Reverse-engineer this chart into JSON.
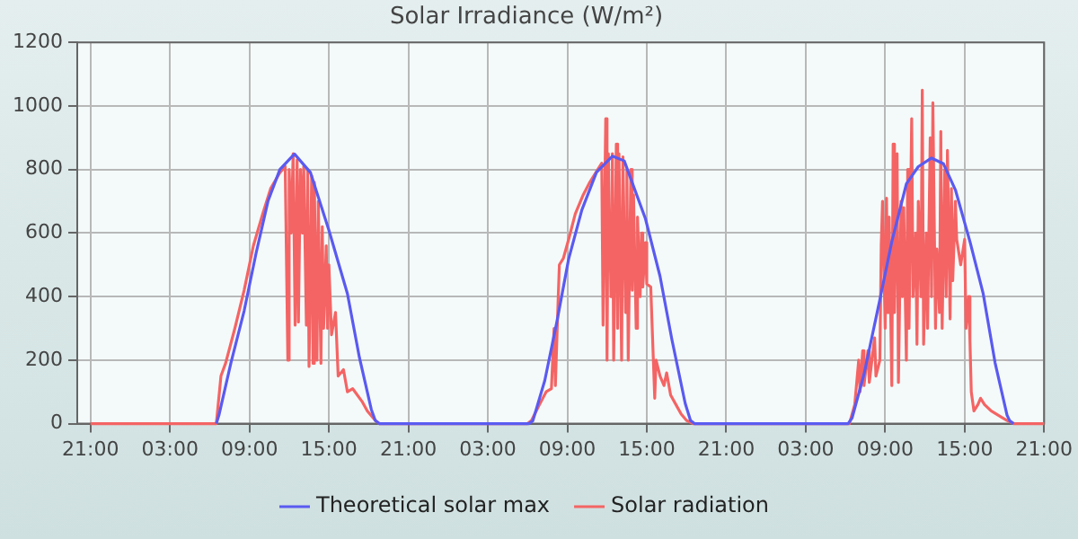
{
  "chart_data": {
    "type": "line",
    "title": "Solar Irradiance (W/m²)",
    "xlim": [
      "--01-01T20:00",
      "--01-04T21:00"
    ],
    "xticks": [
      {
        "value": "--01-01T21:00",
        "label": "21:00"
      },
      {
        "value": "--01-02T03:00",
        "label": "03:00"
      },
      {
        "value": "--01-02T09:00",
        "label": "09:00"
      },
      {
        "value": "--01-02T15:00",
        "label": "15:00"
      },
      {
        "value": "--01-02T21:00",
        "label": "21:00"
      },
      {
        "value": "--01-03T03:00",
        "label": "03:00"
      },
      {
        "value": "--01-03T09:00",
        "label": "09:00"
      },
      {
        "value": "--01-03T15:00",
        "label": "15:00"
      },
      {
        "value": "--01-03T21:00",
        "label": "21:00"
      },
      {
        "value": "--01-04T03:00",
        "label": "03:00"
      },
      {
        "value": "--01-04T09:00",
        "label": "09:00"
      },
      {
        "value": "--01-04T15:00",
        "label": "15:00"
      },
      {
        "value": "--01-04T21:00",
        "label": "21:00"
      }
    ],
    "ylim": [
      0,
      1200
    ],
    "yticks": [
      0,
      200,
      400,
      600,
      800,
      1000,
      1200
    ],
    "grid": true,
    "legend": "bottom",
    "marker": "none",
    "line_style": "solid",
    "series": [
      {
        "name": "Theoretical solar max",
        "color": "#5a5af0",
        "x": [
          "--01-02T06:30",
          "--01-02T06:42",
          "--01-02T07:36",
          "--01-02T08:36",
          "--01-02T09:30",
          "--01-02T10:24",
          "--01-02T11:18",
          "--01-02T12:24",
          "--01-02T13:36",
          "--01-02T15:00",
          "--01-02T16:24",
          "--01-02T17:18",
          "--01-02T18:12",
          "--01-02T18:30",
          "--01-02T18:48",
          "--01-03T06:06",
          "--01-03T06:24",
          "--01-03T07:18",
          "--01-03T08:12",
          "--01-03T09:06",
          "--01-03T10:06",
          "--01-03T11:12",
          "--01-03T12:24",
          "--01-03T13:18",
          "--01-03T14:54",
          "--01-03T16:00",
          "--01-03T16:54",
          "--01-03T17:54",
          "--01-03T18:18",
          "--01-03T18:36",
          "--01-04T06:12",
          "--01-04T06:30",
          "--01-04T07:24",
          "--01-04T08:36",
          "--01-04T09:30",
          "--01-04T10:36",
          "--01-04T11:30",
          "--01-04T12:30",
          "--01-04T13:24",
          "--01-04T14:18",
          "--01-04T15:24",
          "--01-04T16:24",
          "--01-04T17:18",
          "--01-04T18:12",
          "--01-04T18:24",
          "--01-04T18:42"
        ],
        "values": [
          0,
          27,
          191,
          355,
          536,
          700,
          800,
          849,
          791,
          609,
          409,
          209,
          45,
          10,
          0,
          0,
          9,
          136,
          318,
          518,
          673,
          791,
          842,
          827,
          645,
          464,
          264,
          64,
          10,
          0,
          0,
          18,
          155,
          391,
          573,
          755,
          809,
          836,
          818,
          736,
          573,
          409,
          191,
          27,
          9,
          0
        ]
      },
      {
        "name": "Solar radiation",
        "color": "#f46464",
        "x": [
          "--01-01T21:00",
          "--01-02T06:30",
          "--01-02T06:51",
          "--01-02T07:12",
          "--01-02T07:54",
          "--01-02T08:36",
          "--01-02T09:18",
          "--01-02T10:00",
          "--01-02T10:36",
          "--01-02T11:18",
          "--01-02T11:42",
          "--01-02T11:54",
          "--01-02T12:00",
          "--01-02T12:09",
          "--01-02T12:18",
          "--01-02T12:27",
          "--01-02T12:36",
          "--01-02T12:42",
          "--01-02T12:51",
          "--01-02T13:00",
          "--01-02T13:06",
          "--01-02T13:18",
          "--01-02T13:24",
          "--01-02T13:30",
          "--01-02T13:42",
          "--01-02T13:48",
          "--01-02T13:54",
          "--01-02T14:06",
          "--01-02T14:12",
          "--01-02T14:24",
          "--01-02T14:30",
          "--01-02T14:36",
          "--01-02T14:48",
          "--01-02T14:54",
          "--01-02T15:00",
          "--01-02T15:12",
          "--01-02T15:30",
          "--01-02T15:42",
          "--01-02T16:06",
          "--01-02T16:24",
          "--01-02T16:48",
          "--01-02T17:30",
          "--01-02T17:54",
          "--01-02T18:30",
          "--01-02T18:48",
          "--01-03T06:00",
          "--01-03T06:18",
          "--01-03T06:54",
          "--01-03T07:24",
          "--01-03T07:48",
          "--01-03T08:00",
          "--01-03T08:06",
          "--01-03T08:18",
          "--01-03T08:24",
          "--01-03T08:42",
          "--01-03T09:06",
          "--01-03T09:36",
          "--01-03T10:12",
          "--01-03T10:42",
          "--01-03T11:18",
          "--01-03T11:36",
          "--01-03T11:42",
          "--01-03T11:54",
          "--01-03T12:00",
          "--01-03T12:06",
          "--01-03T12:18",
          "--01-03T12:24",
          "--01-03T12:30",
          "--01-03T12:42",
          "--01-03T12:48",
          "--01-03T12:54",
          "--01-03T13:06",
          "--01-03T13:12",
          "--01-03T13:24",
          "--01-03T13:30",
          "--01-03T13:36",
          "--01-03T13:48",
          "--01-03T13:54",
          "--01-03T14:00",
          "--01-03T14:12",
          "--01-03T14:18",
          "--01-03T14:30",
          "--01-03T14:36",
          "--01-03T14:42",
          "--01-03T14:54",
          "--01-03T15:00",
          "--01-03T15:18",
          "--01-03T15:36",
          "--01-03T15:42",
          "--01-03T16:00",
          "--01-03T16:18",
          "--01-03T16:30",
          "--01-03T16:48",
          "--01-03T17:12",
          "--01-03T17:36",
          "--01-03T18:00",
          "--01-03T18:30",
          "--01-04T06:18",
          "--01-04T06:42",
          "--01-04T07:00",
          "--01-04T07:06",
          "--01-04T07:18",
          "--01-04T07:24",
          "--01-04T07:42",
          "--01-04T07:48",
          "--01-04T08:12",
          "--01-04T08:18",
          "--01-04T08:36",
          "--01-04T08:42",
          "--01-04T08:48",
          "--01-04T09:00",
          "--01-04T09:06",
          "--01-04T09:12",
          "--01-04T09:18",
          "--01-04T09:30",
          "--01-04T09:36",
          "--01-04T09:42",
          "--01-04T09:54",
          "--01-04T10:00",
          "--01-04T10:12",
          "--01-04T10:18",
          "--01-04T10:24",
          "--01-04T10:36",
          "--01-04T10:42",
          "--01-04T10:48",
          "--01-04T11:00",
          "--01-04T11:06",
          "--01-04T11:18",
          "--01-04T11:24",
          "--01-04T11:30",
          "--01-04T11:42",
          "--01-04T11:48",
          "--01-04T11:54",
          "--01-04T12:06",
          "--01-04T12:12",
          "--01-04T12:24",
          "--01-04T12:30",
          "--01-04T12:36",
          "--01-04T12:48",
          "--01-04T12:54",
          "--01-04T13:06",
          "--01-04T13:12",
          "--01-04T13:18",
          "--01-04T13:30",
          "--01-04T13:36",
          "--01-04T13:42",
          "--01-04T13:54",
          "--01-04T14:00",
          "--01-04T14:06",
          "--01-04T14:18",
          "--01-04T14:24",
          "--01-04T14:42",
          "--01-04T15:00",
          "--01-04T15:06",
          "--01-04T15:18",
          "--01-04T15:24",
          "--01-04T15:30",
          "--01-04T15:42",
          "--01-04T16:00",
          "--01-04T16:12",
          "--01-04T16:30",
          "--01-04T17:00",
          "--01-04T17:48",
          "--01-04T18:12",
          "--01-04T18:42",
          "--01-04T21:00"
        ],
        "values": [
          0,
          0,
          150,
          190,
          300,
          420,
          560,
          660,
          740,
          790,
          810,
          200,
          800,
          600,
          850,
          310,
          830,
          320,
          800,
          600,
          810,
          310,
          800,
          180,
          780,
          190,
          760,
          200,
          700,
          190,
          620,
          300,
          560,
          300,
          500,
          280,
          350,
          150,
          170,
          100,
          110,
          70,
          40,
          10,
          0,
          0,
          10,
          60,
          100,
          110,
          300,
          120,
          380,
          500,
          520,
          580,
          660,
          720,
          760,
          800,
          820,
          310,
          960,
          200,
          850,
          400,
          850,
          200,
          880,
          300,
          850,
          200,
          840,
          350,
          800,
          200,
          800,
          420,
          720,
          300,
          650,
          400,
          600,
          430,
          570,
          440,
          430,
          80,
          200,
          150,
          120,
          160,
          90,
          60,
          30,
          10,
          0,
          0,
          60,
          200,
          100,
          230,
          120,
          230,
          130,
          270,
          150,
          200,
          560,
          700,
          300,
          710,
          350,
          650,
          120,
          880,
          350,
          850,
          130,
          700,
          400,
          680,
          200,
          800,
          300,
          960,
          400,
          600,
          250,
          700,
          400,
          1050,
          250,
          600,
          300,
          900,
          400,
          1010,
          300,
          550,
          350,
          920,
          300,
          800,
          400,
          860,
          330,
          740,
          450,
          700,
          580,
          500,
          580,
          300,
          400,
          260,
          100,
          40,
          60,
          80,
          60,
          40,
          20,
          10,
          0,
          0
        ]
      }
    ]
  }
}
